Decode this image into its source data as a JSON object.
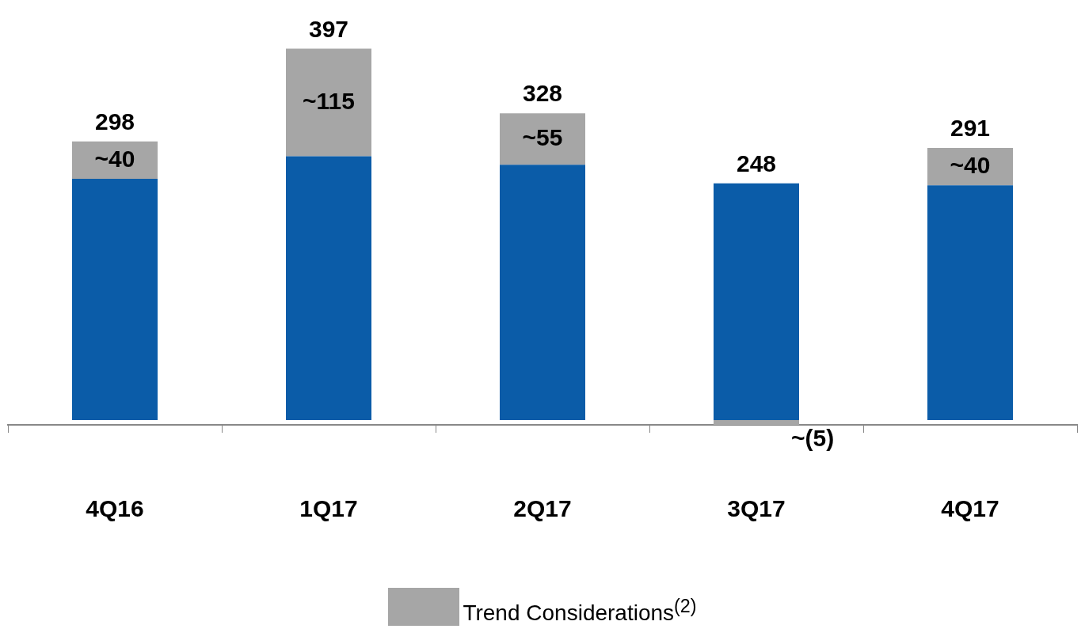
{
  "chart_data": {
    "type": "bar",
    "stacked": true,
    "categories": [
      "4Q16",
      "1Q17",
      "2Q17",
      "3Q17",
      "4Q17"
    ],
    "series": [
      {
        "color": "#0b5ca8",
        "values": [
          258,
          282,
          273,
          253,
          251
        ]
      },
      {
        "name": "Trend Considerations$^{(2)}$",
        "color": "#a6a6a6",
        "values": [
          40,
          115,
          55,
          -5,
          40
        ],
        "value_labels": [
          "~40",
          "~115",
          "~55",
          "~(5)",
          "~40"
        ]
      }
    ],
    "totals": [
      "298",
      "397",
      "328",
      "248",
      "291"
    ],
    "ylim": [
      -5,
      400
    ],
    "tick_labels": "x",
    "grid": false,
    "legend": "bottom"
  }
}
